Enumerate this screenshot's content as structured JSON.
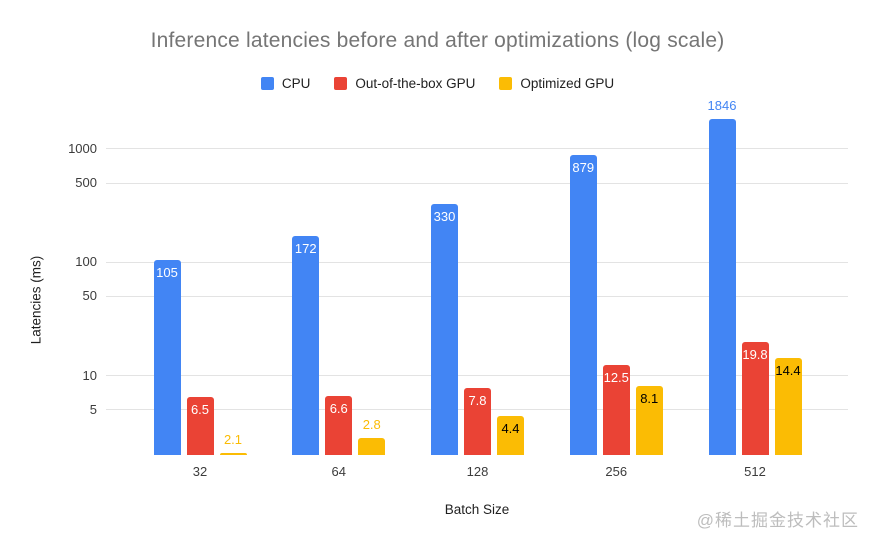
{
  "title": "Inference latencies before and after optimizations (log scale)",
  "legend": {
    "items": [
      {
        "label": "CPU",
        "color": "#4285f4"
      },
      {
        "label": "Out-of-the-box GPU",
        "color": "#ea4335"
      },
      {
        "label": "Optimized GPU",
        "color": "#fbbc04"
      }
    ]
  },
  "axes": {
    "y_title": "Latencies (ms)",
    "x_title": "Batch Size",
    "y_tick_labels": [
      "1000",
      "500",
      "100",
      "50",
      "10",
      "5"
    ],
    "x_tick_labels": [
      "32",
      "64",
      "128",
      "256",
      "512"
    ]
  },
  "watermark": "@稀土掘金技术社区",
  "chart_data": {
    "type": "bar",
    "scale": "log",
    "title": "Inference latencies before and after optimizations (log scale)",
    "xlabel": "Batch Size",
    "ylabel": "Latencies (ms)",
    "categories": [
      "32",
      "64",
      "128",
      "256",
      "512"
    ],
    "series": [
      {
        "name": "CPU",
        "color": "#4285f4",
        "label_color_inside": "#ffffff",
        "values": [
          105,
          172,
          330,
          879,
          1846
        ]
      },
      {
        "name": "Out-of-the-box GPU",
        "color": "#ea4335",
        "label_color_inside": "#ffffff",
        "values": [
          6.5,
          6.6,
          7.8,
          12.5,
          19.8
        ]
      },
      {
        "name": "Optimized GPU",
        "color": "#fbbc04",
        "label_color_inside": "#000000",
        "values": [
          2.1,
          2.8,
          4.4,
          8.1,
          14.4
        ]
      }
    ],
    "y_ticks": [
      1000,
      500,
      100,
      50,
      10,
      5
    ],
    "ylim": [
      2,
      2500
    ],
    "grid": true,
    "legend_position": "top",
    "data_labels": true
  }
}
